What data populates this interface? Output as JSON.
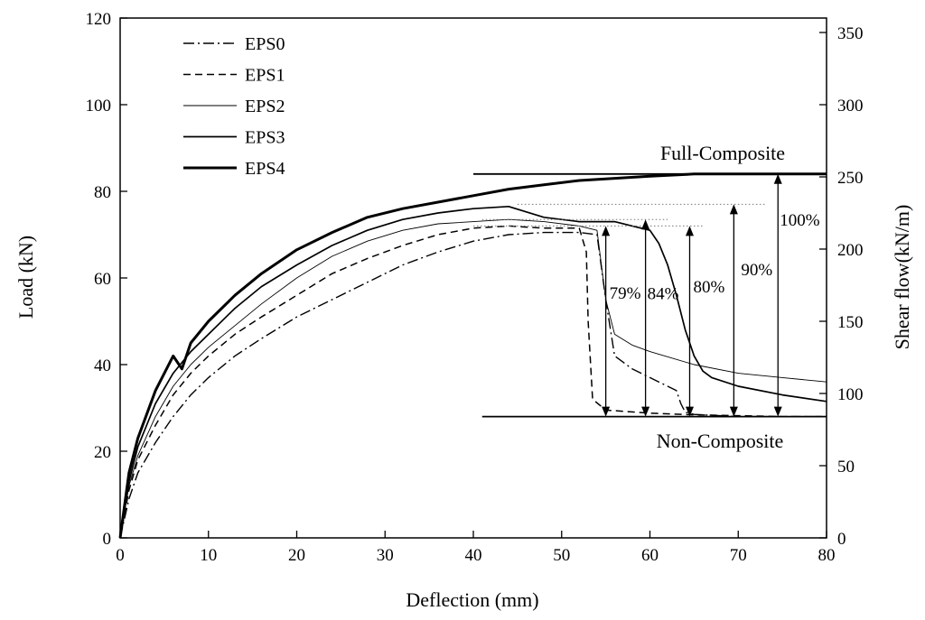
{
  "chart_data": {
    "type": "line",
    "xlabel": "Deflection (mm)",
    "ylabel": "Load (kN)",
    "y2label": "Shear flow(kN/m)",
    "xlim": [
      0,
      80
    ],
    "ylim": [
      0,
      120
    ],
    "y2lim": [
      0,
      360
    ],
    "xticks": [
      "0",
      "10",
      "20",
      "30",
      "40",
      "50",
      "60",
      "70",
      "80"
    ],
    "yticks": [
      "0",
      "20",
      "40",
      "60",
      "80",
      "100",
      "120"
    ],
    "y2ticks": [
      "0",
      "50",
      "100",
      "150",
      "200",
      "250",
      "300",
      "350"
    ],
    "reference_lines": [
      {
        "name": "Full-Composite",
        "y": 84,
        "x_range": [
          40,
          80
        ]
      },
      {
        "name": "Non-Composite",
        "y": 28,
        "x_range": [
          41,
          80
        ]
      }
    ],
    "annotations": [
      {
        "label": "79%",
        "x": 55,
        "y_from": 28,
        "y_to": 72
      },
      {
        "label": "84%",
        "x": 59.5,
        "y_from": 28,
        "y_to": 73.5
      },
      {
        "label": "80%",
        "x": 64.5,
        "y_from": 28,
        "y_to": 72
      },
      {
        "label": "90%",
        "x": 69.5,
        "y_from": 28,
        "y_to": 77
      },
      {
        "label": "100%",
        "x": 74.5,
        "y_from": 28,
        "y_to": 84
      }
    ],
    "guide_lines": [
      {
        "y": 77,
        "x_range": [
          45,
          73
        ]
      },
      {
        "y": 73.5,
        "x_range": [
          41,
          62
        ]
      },
      {
        "y": 72,
        "x_range": [
          40,
          66
        ]
      }
    ],
    "series": [
      {
        "name": "EPS0",
        "style": "dashdot",
        "x": [
          0,
          1,
          2,
          4,
          6,
          8,
          10,
          13,
          16,
          20,
          24,
          28,
          32,
          36,
          40,
          44,
          48,
          52,
          54,
          55,
          56,
          58,
          60,
          61,
          62,
          63,
          63.5,
          64,
          65,
          70,
          75,
          80
        ],
        "y": [
          0,
          9,
          15,
          22,
          28,
          33,
          37,
          42,
          46,
          51,
          55,
          59,
          63,
          66,
          68.5,
          70,
          70.5,
          70.5,
          70,
          55,
          42,
          39,
          37,
          36,
          35,
          34,
          31,
          29,
          28.5,
          28,
          28,
          28
        ]
      },
      {
        "name": "EPS1",
        "style": "dash",
        "x": [
          0,
          1,
          2,
          4,
          6,
          8,
          10,
          13,
          16,
          20,
          24,
          28,
          32,
          36,
          40,
          44,
          48,
          52,
          52.8,
          53,
          53.5,
          55,
          60,
          65,
          70,
          75,
          80
        ],
        "y": [
          0,
          11,
          18,
          26,
          33,
          38,
          42,
          47,
          51,
          56,
          61,
          64.5,
          67.5,
          70,
          71.5,
          72,
          71.5,
          71.5,
          66,
          50,
          32,
          29.5,
          28.8,
          28.4,
          28.2,
          28,
          28
        ]
      },
      {
        "name": "EPS2",
        "style": "thin",
        "x": [
          0,
          1,
          2,
          4,
          6,
          8,
          10,
          13,
          16,
          20,
          24,
          28,
          32,
          36,
          40,
          44,
          48,
          52,
          54,
          55,
          56,
          58,
          60,
          65,
          70,
          75,
          80
        ],
        "y": [
          0,
          12,
          19,
          28,
          35,
          40,
          44,
          49,
          54,
          60,
          65,
          68.5,
          71,
          72.5,
          73,
          73.5,
          73,
          72,
          71,
          55,
          47,
          44.5,
          43,
          40,
          38,
          37,
          36
        ]
      },
      {
        "name": "EPS3",
        "style": "medium",
        "x": [
          0,
          1,
          2,
          4,
          6,
          8,
          10,
          13,
          16,
          20,
          24,
          28,
          32,
          36,
          40,
          44,
          48,
          52,
          56,
          58,
          60,
          61,
          62,
          63,
          64,
          65,
          66,
          67,
          70,
          75,
          80
        ],
        "y": [
          0,
          13,
          21,
          31,
          38,
          43,
          47,
          53,
          58,
          63,
          67.5,
          71,
          73.5,
          75,
          76,
          76.5,
          74,
          73,
          73,
          72,
          71,
          68,
          63,
          56,
          48,
          42,
          38.5,
          37,
          35,
          33,
          31.5
        ]
      },
      {
        "name": "EPS4",
        "style": "thick",
        "x": [
          0,
          1,
          2,
          4,
          6,
          7,
          8,
          10,
          13,
          16,
          20,
          24,
          28,
          32,
          36,
          40,
          44,
          48,
          52,
          56,
          60,
          65,
          70,
          75,
          80
        ],
        "y": [
          0,
          15,
          23,
          34,
          42,
          39,
          45,
          50,
          56,
          61,
          66.5,
          70.5,
          74,
          76,
          77.5,
          79,
          80.5,
          81.5,
          82.5,
          83,
          83.5,
          84,
          84,
          84,
          84
        ]
      }
    ]
  }
}
